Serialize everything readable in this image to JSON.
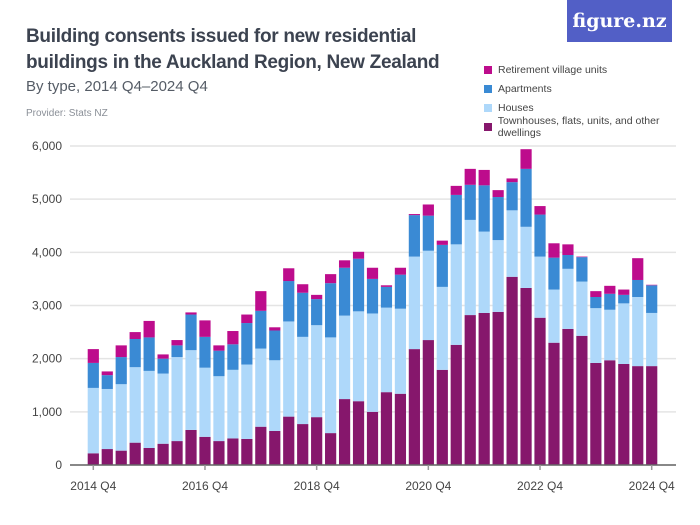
{
  "header": {
    "title": "Building consents issued for new residential buildings in the Auckland Region, New Zealand",
    "subtitle": "By type, 2014 Q4–2024 Q4",
    "provider": "Provider: Stats NZ",
    "logo": "figure.nz"
  },
  "chart_data": {
    "type": "bar",
    "stacked": true,
    "title": "Building consents issued for new residential buildings in the Auckland Region, New Zealand",
    "subtitle": "By type, 2014 Q4–2024 Q4",
    "xlabel": "",
    "ylabel": "",
    "ylim": [
      0,
      6000
    ],
    "yticks": [
      "0",
      "1,000",
      "2,000",
      "3,000",
      "4,000",
      "5,000",
      "6,000"
    ],
    "ytick_values": [
      0,
      1000,
      2000,
      3000,
      4000,
      5000,
      6000
    ],
    "xtick_labels": [
      "2014 Q4",
      "2016 Q4",
      "2018 Q4",
      "2020 Q4",
      "2022 Q4",
      "2024 Q4"
    ],
    "xtick_indices": [
      0,
      8,
      16,
      24,
      32,
      40
    ],
    "grid": true,
    "legend_position": "top-right",
    "categories": [
      "2014 Q4",
      "2015 Q1",
      "2015 Q2",
      "2015 Q3",
      "2015 Q4",
      "2016 Q1",
      "2016 Q2",
      "2016 Q3",
      "2016 Q4",
      "2017 Q1",
      "2017 Q2",
      "2017 Q3",
      "2017 Q4",
      "2018 Q1",
      "2018 Q2",
      "2018 Q3",
      "2018 Q4",
      "2019 Q1",
      "2019 Q2",
      "2019 Q3",
      "2019 Q4",
      "2020 Q1",
      "2020 Q2",
      "2020 Q3",
      "2020 Q4",
      "2021 Q1",
      "2021 Q2",
      "2021 Q3",
      "2021 Q4",
      "2022 Q1",
      "2022 Q2",
      "2022 Q3",
      "2022 Q4",
      "2023 Q1",
      "2023 Q2",
      "2023 Q3",
      "2023 Q4",
      "2024 Q1",
      "2024 Q2",
      "2024 Q3",
      "2024 Q4"
    ],
    "series": [
      {
        "name": "Townhouses, flats, units, and other dwellings",
        "color": "#86176c",
        "values": [
          220,
          300,
          270,
          420,
          320,
          400,
          450,
          660,
          530,
          450,
          500,
          490,
          720,
          640,
          910,
          770,
          900,
          600,
          1240,
          1200,
          1000,
          1370,
          1340,
          2180,
          2350,
          1790,
          2260,
          2820,
          2860,
          2880,
          3540,
          3330,
          2770,
          2300,
          2560,
          2430,
          1920,
          1970,
          1900,
          1860,
          1860
        ]
      },
      {
        "name": "Houses",
        "color": "#aed8fa",
        "values": [
          1230,
          1130,
          1250,
          1420,
          1450,
          1320,
          1580,
          1500,
          1300,
          1220,
          1290,
          1400,
          1470,
          1330,
          1790,
          1640,
          1730,
          1800,
          1570,
          1690,
          1850,
          1590,
          1600,
          1740,
          1680,
          1560,
          1890,
          1790,
          1530,
          1350,
          1250,
          1150,
          1150,
          1000,
          1130,
          1020,
          1030,
          950,
          1140,
          1300,
          1000
        ]
      },
      {
        "name": "Apartments",
        "color": "#3a8ad4",
        "values": [
          470,
          260,
          510,
          530,
          630,
          280,
          220,
          670,
          580,
          480,
          480,
          780,
          710,
          560,
          760,
          830,
          490,
          1020,
          900,
          990,
          650,
          390,
          640,
          780,
          660,
          790,
          930,
          660,
          870,
          810,
          530,
          1090,
          790,
          600,
          260,
          460,
          210,
          300,
          160,
          320,
          520
        ]
      },
      {
        "name": "Retirement village units",
        "color": "#bd0c8c",
        "values": [
          260,
          70,
          220,
          130,
          310,
          80,
          100,
          40,
          310,
          100,
          250,
          160,
          370,
          60,
          240,
          160,
          80,
          170,
          140,
          130,
          210,
          30,
          130,
          20,
          210,
          80,
          170,
          300,
          290,
          130,
          70,
          370,
          160,
          270,
          200,
          10,
          110,
          150,
          100,
          410,
          10
        ]
      }
    ]
  },
  "legend_order": [
    3,
    2,
    1,
    0
  ]
}
